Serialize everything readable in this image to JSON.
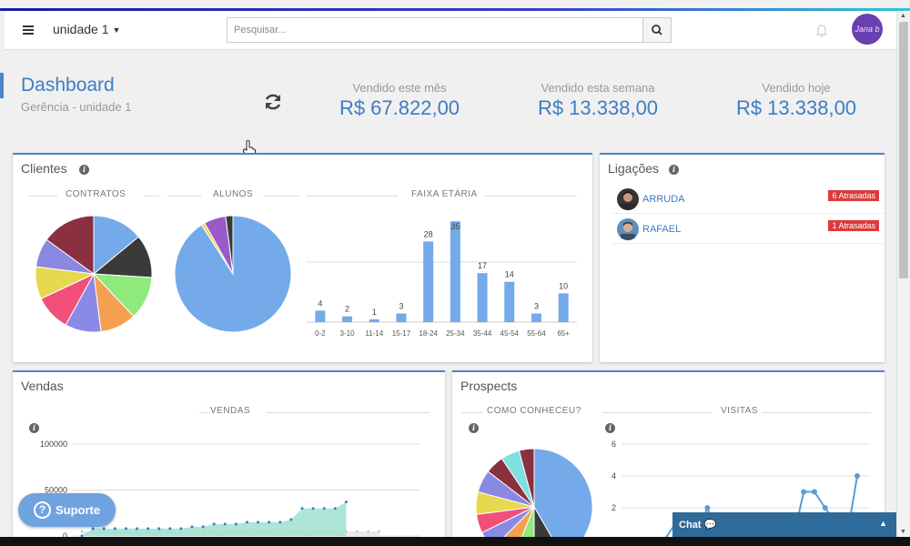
{
  "topbar": {
    "unit": "unidade 1",
    "search_placeholder": "Pesquisar...",
    "avatar_text": "Jana b"
  },
  "header": {
    "title": "Dashboard",
    "subtitle": "Gerência - unidade 1"
  },
  "stats": [
    {
      "label": "Vendido este mês",
      "value": "R$ 67.822,00"
    },
    {
      "label": "Vendido esta semana",
      "value": "R$ 13.338,00"
    },
    {
      "label": "Vendido hoje",
      "value": "R$ 13.338,00"
    }
  ],
  "clientes": {
    "title": "Clientes",
    "sections": {
      "contratos": "CONTRATOS",
      "alunos": "ALUNOS",
      "faixa": "FAIXA ETÁRIA"
    }
  },
  "ligacoes": {
    "title": "Ligações",
    "rows": [
      {
        "name": "ARRUDA",
        "badge": "6 Atrasadas"
      },
      {
        "name": "RAFAEL",
        "badge": "1 Atrasadas"
      }
    ]
  },
  "vendas": {
    "title": "Vendas",
    "section": "VENDAS"
  },
  "prospects": {
    "title": "Prospects",
    "sections": {
      "como": "COMO CONHECEU?",
      "visitas": "VISITAS"
    }
  },
  "suporte": "Suporte",
  "chat": "Chat",
  "colors": {
    "accent": "#3d7cc4",
    "bars": "#74aaea",
    "area": "#9fe0cf",
    "badge": "#dd3b3b",
    "chat": "#2f6b9a"
  },
  "chart_data": [
    {
      "type": "pie",
      "title": "CONTRATOS",
      "values": [
        14,
        12,
        12,
        10,
        10,
        10,
        9,
        8,
        15
      ],
      "colors": [
        "#74aaea",
        "#3a3a3a",
        "#8eea7a",
        "#f5a050",
        "#8a8ae6",
        "#f0507a",
        "#e8d850",
        "#8a88e0",
        "#8a3040"
      ]
    },
    {
      "type": "pie",
      "title": "ALUNOS",
      "values": [
        90,
        1,
        6,
        2
      ],
      "colors": [
        "#74aaea",
        "#e8d850",
        "#9a5ac8",
        "#3a3a3a"
      ]
    },
    {
      "type": "bar",
      "title": "FAIXA ETÁRIA",
      "categories": [
        "0-2",
        "3-10",
        "11-14",
        "15-17",
        "18-24",
        "25-34",
        "35-44",
        "45-54",
        "55-64",
        "65+"
      ],
      "values": [
        4,
        2,
        1,
        3,
        28,
        35,
        17,
        14,
        3,
        10
      ]
    },
    {
      "type": "area",
      "title": "VENDAS",
      "y_ticks": [
        "100000",
        "50000",
        "0"
      ],
      "ylim": [
        0,
        100000
      ],
      "values": [
        0,
        8000,
        8000,
        8000,
        8000,
        8000,
        8000,
        8000,
        8000,
        8000,
        10000,
        10000,
        13000,
        13000,
        13000,
        15000,
        15000,
        15000,
        15000,
        18000,
        30000,
        30000,
        30000,
        30000,
        37000
      ],
      "ref_values": [
        5000,
        5000,
        5000,
        5000,
        5000,
        5000,
        5000,
        5000,
        5000,
        5000,
        5000,
        5000,
        5000,
        5000,
        5000,
        5000,
        5000,
        5000,
        5000,
        5000,
        5000,
        5000,
        5000,
        5000,
        5000,
        5000,
        5000,
        5000
      ]
    },
    {
      "type": "pie",
      "title": "COMO CONHECEU?",
      "values": [
        40,
        8,
        6,
        6,
        5,
        5,
        6,
        6,
        5,
        5,
        4
      ],
      "colors": [
        "#74aaea",
        "#3a3a3a",
        "#8eea7a",
        "#f5a050",
        "#8a8ae6",
        "#f0507a",
        "#e8d850",
        "#8a88e0",
        "#8a3040",
        "#7fe0e0",
        "#8a3040"
      ]
    },
    {
      "type": "line",
      "title": "VISITAS",
      "y_ticks": [
        "6",
        "4",
        "2"
      ],
      "ylim": [
        0,
        6
      ],
      "x": [
        0,
        1,
        2,
        3,
        4,
        5,
        6,
        7,
        8,
        9,
        10,
        11,
        12,
        13,
        14,
        15,
        16,
        17,
        18,
        19,
        20,
        21
      ],
      "values": [
        0,
        0,
        0,
        0,
        1,
        0,
        0,
        2,
        0,
        0,
        0,
        0,
        0,
        0,
        0,
        0,
        3,
        3,
        2,
        1,
        0,
        4
      ]
    }
  ]
}
